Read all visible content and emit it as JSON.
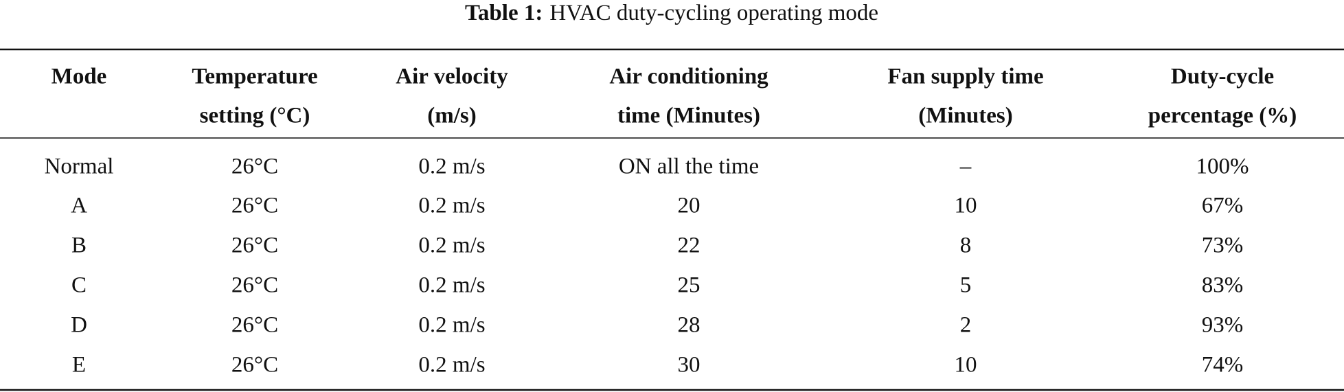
{
  "caption": {
    "label": "Table 1:",
    "text": "HVAC duty-cycling operating mode"
  },
  "table": {
    "headers": [
      [
        "Mode"
      ],
      [
        "Temperature",
        "setting (°C)"
      ],
      [
        "Air velocity",
        "(m/s)"
      ],
      [
        "Air conditioning",
        "time (Minutes)"
      ],
      [
        "Fan supply time",
        "(Minutes)"
      ],
      [
        "Duty-cycle",
        "percentage (%)"
      ]
    ],
    "rows": [
      [
        "Normal",
        "26°C",
        "0.2 m/s",
        "ON all the time",
        "–",
        "100%"
      ],
      [
        "A",
        "26°C",
        "0.2 m/s",
        "20",
        "10",
        "67%"
      ],
      [
        "B",
        "26°C",
        "0.2 m/s",
        "22",
        "8",
        "73%"
      ],
      [
        "C",
        "26°C",
        "0.2 m/s",
        "25",
        "5",
        "83%"
      ],
      [
        "D",
        "26°C",
        "0.2 m/s",
        "28",
        "2",
        "93%"
      ],
      [
        "E",
        "26°C",
        "0.2 m/s",
        "30",
        "10",
        "74%"
      ]
    ]
  }
}
